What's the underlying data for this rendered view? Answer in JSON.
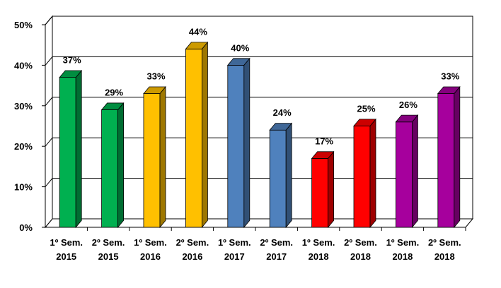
{
  "chart_data": {
    "type": "bar",
    "categories": [
      [
        "1º Sem.",
        "2015"
      ],
      [
        "2º Sem.",
        "2015"
      ],
      [
        "1º Sem.",
        "2016"
      ],
      [
        "2º Sem.",
        "2016"
      ],
      [
        "1º Sem.",
        "2017"
      ],
      [
        "2º Sem.",
        "2017"
      ],
      [
        "1º Sem.",
        "2018"
      ],
      [
        "2º Sem.",
        "2018"
      ],
      [
        "1º Sem.",
        "2018"
      ],
      [
        "2º Sem.",
        "2018"
      ]
    ],
    "values": [
      37,
      29,
      33,
      44,
      40,
      24,
      17,
      25,
      26,
      33
    ],
    "data_labels": [
      "37%",
      "29%",
      "33%",
      "44%",
      "40%",
      "24%",
      "17%",
      "25%",
      "26%",
      "33%"
    ],
    "bar_colors": [
      "#00B050",
      "#00B050",
      "#FFC000",
      "#FFC000",
      "#4F81BD",
      "#4F81BD",
      "#FF0000",
      "#FF0000",
      "#A6009D",
      "#A6009D"
    ],
    "y_ticks": [
      "0%",
      "10%",
      "20%",
      "30%",
      "40%",
      "50%"
    ],
    "ylim": [
      0,
      50
    ],
    "y_unit": "%",
    "grid": true,
    "style": "3d-column",
    "title": "",
    "xlabel": "",
    "ylabel": ""
  }
}
